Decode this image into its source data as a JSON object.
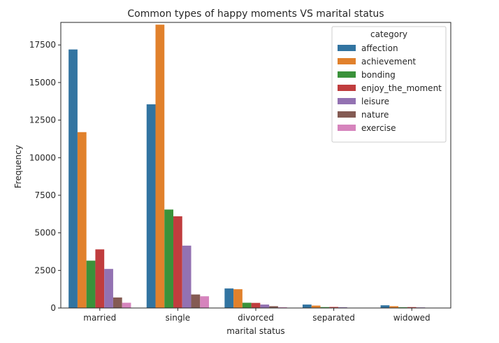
{
  "chart_data": {
    "type": "bar",
    "title": "Common types of happy moments VS marital status",
    "xlabel": "marital status",
    "ylabel": "Frequency",
    "categories": [
      "married",
      "single",
      "divorced",
      "separated",
      "widowed"
    ],
    "ylim": [
      0,
      19000
    ],
    "yticks": [
      0,
      2500,
      5000,
      7500,
      10000,
      12500,
      15000,
      17500
    ],
    "legend": {
      "title": "category",
      "position": "top-right"
    },
    "grid": false,
    "series": [
      {
        "name": "affection",
        "color": "#3274a1",
        "values": [
          17200,
          13550,
          1300,
          230,
          180
        ]
      },
      {
        "name": "achievement",
        "color": "#e1812c",
        "values": [
          11700,
          18850,
          1250,
          160,
          120
        ]
      },
      {
        "name": "bonding",
        "color": "#3a923a",
        "values": [
          3150,
          6550,
          350,
          60,
          50
        ]
      },
      {
        "name": "enjoy_the_moment",
        "color": "#c03d3e",
        "values": [
          3900,
          6100,
          340,
          70,
          60
        ]
      },
      {
        "name": "leisure",
        "color": "#9372b2",
        "values": [
          2600,
          4150,
          230,
          50,
          40
        ]
      },
      {
        "name": "nature",
        "color": "#845b53",
        "values": [
          700,
          900,
          120,
          20,
          20
        ]
      },
      {
        "name": "exercise",
        "color": "#d684bd",
        "values": [
          350,
          780,
          50,
          10,
          10
        ]
      }
    ]
  }
}
